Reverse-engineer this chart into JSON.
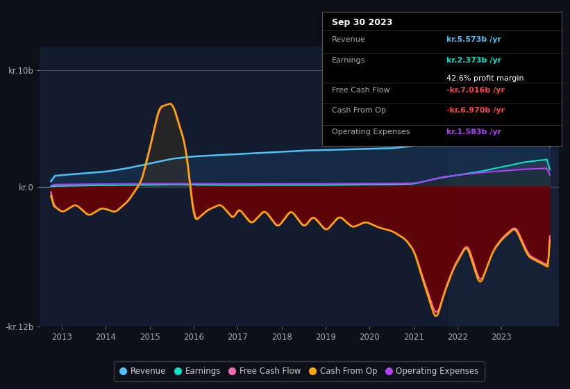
{
  "bg_color": "#0d1117",
  "plot_bg_color": "#131b2e",
  "title": "Sep 30 2023",
  "ylim": [
    -12,
    12
  ],
  "xlim": [
    2012.5,
    2024.3
  ],
  "xticks": [
    2013,
    2014,
    2015,
    2016,
    2017,
    2018,
    2019,
    2020,
    2021,
    2022,
    2023
  ],
  "colors": {
    "revenue": "#4fc3f7",
    "earnings": "#00e5cc",
    "free_cash_flow": "#ff69b4",
    "cash_from_op": "#ffa500",
    "operating_expenses": "#b040fb"
  },
  "info_box": {
    "date": "Sep 30 2023",
    "revenue_label": "Revenue",
    "revenue_value": "kr.5.573b /yr",
    "revenue_color": "#4fc3f7",
    "earnings_label": "Earnings",
    "earnings_value": "kr.2.373b /yr",
    "earnings_color": "#00e5cc",
    "margin_value": "42.6% profit margin",
    "fcf_label": "Free Cash Flow",
    "fcf_value": "-kr.7.016b /yr",
    "fcf_color": "#ff4444",
    "cashop_label": "Cash From Op",
    "cashop_value": "-kr.6.970b /yr",
    "cashop_color": "#ff4444",
    "opex_label": "Operating Expenses",
    "opex_value": "kr.1.583b /yr",
    "opex_color": "#b040fb"
  },
  "legend": [
    {
      "label": "Revenue",
      "color": "#4fc3f7"
    },
    {
      "label": "Earnings",
      "color": "#00e5cc"
    },
    {
      "label": "Free Cash Flow",
      "color": "#ff69b4"
    },
    {
      "label": "Cash From Op",
      "color": "#ffa500"
    },
    {
      "label": "Operating Expenses",
      "color": "#b040fb"
    }
  ]
}
